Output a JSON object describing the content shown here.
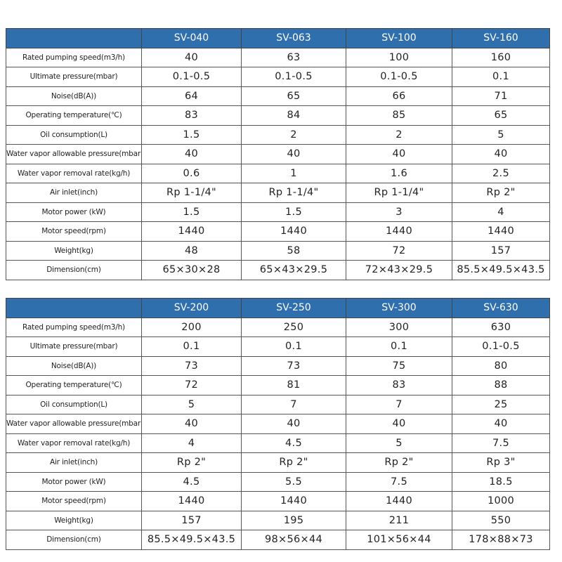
{
  "tables": [
    {
      "header": [
        "SV-040",
        "SV-063",
        "SV-100",
        "SV-160"
      ],
      "rows": [
        [
          "Rated pumping speed(m3/h)",
          40,
          63,
          100,
          160
        ],
        [
          "Ultimate pressure(mbar)",
          "0.1-0.5",
          "0.1-0.5",
          "0.1-0.5",
          0.1
        ],
        [
          "Noise(dB(A))",
          64,
          65,
          66,
          71
        ],
        [
          "Operating temperature(℃)",
          83,
          84,
          85,
          65
        ],
        [
          "Oil consumption(L)",
          1.5,
          2,
          2,
          5
        ],
        [
          "Water vapor allowable pressure(mbar)",
          40,
          40,
          40,
          40
        ],
        [
          "Water vapor removal rate(kg/h)",
          0.6,
          1,
          1.6,
          2.5
        ],
        [
          "Air inlet(inch)",
          "Rp 1-1/4\"",
          "Rp 1-1/4\"",
          "Rp 1-1/4\"",
          "Rp 2\""
        ],
        [
          "Motor power (kW)",
          1.5,
          1.5,
          3,
          4
        ],
        [
          "Motor speed(rpm)",
          1440,
          1440,
          1440,
          1440
        ],
        [
          "Weight(kg)",
          48,
          58,
          72,
          157
        ],
        [
          "Dimension(cm)",
          "65×30×28",
          "65×43×29.5",
          "72×43×29.5",
          "85.5×49.5×43.5"
        ]
      ]
    },
    {
      "header": [
        "SV-200",
        "SV-250",
        "SV-300",
        "SV-630"
      ],
      "rows": [
        [
          "Rated pumping speed(m3/h)",
          200,
          250,
          300,
          630
        ],
        [
          "Ultimate pressure(mbar)",
          0.1,
          0.1,
          0.1,
          "0.1-0.5"
        ],
        [
          "Noise(dB(A))",
          73,
          73,
          75,
          80
        ],
        [
          "Operating temperature(℃)",
          72,
          81,
          83,
          88
        ],
        [
          "Oil consumption(L)",
          5,
          7,
          7,
          25
        ],
        [
          "Water vapor allowable pressure(mbar)",
          40,
          40,
          40,
          40
        ],
        [
          "Water vapor removal rate(kg/h)",
          4,
          4.5,
          5,
          7.5
        ],
        [
          "Air inlet(inch)",
          "Rp 2\"",
          "Rp 2\"",
          "Rp 2\"",
          "Rp 3\""
        ],
        [
          "Motor power (kW)",
          4.5,
          5.5,
          7.5,
          18.5
        ],
        [
          "Motor speed(rpm)",
          1440,
          1440,
          1440,
          1000
        ],
        [
          "Weight(kg)",
          157,
          195,
          211,
          550
        ],
        [
          "Dimension(cm)",
          "85.5×49.5×43.5",
          "98×56×44",
          "101×56×44",
          "178×88×73"
        ]
      ]
    }
  ]
}
